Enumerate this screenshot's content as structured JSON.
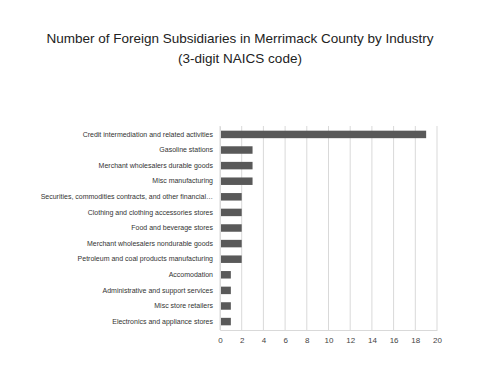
{
  "chart_data": {
    "type": "bar",
    "orientation": "horizontal",
    "title": "Number of Foreign Subsidiaries in Merrimack County by Industry",
    "subtitle": "(3-digit NAICS code)",
    "categories": [
      "Credit intermediation and related activities",
      "Gasoline stations",
      "Merchant wholesalers durable goods",
      "Misc manufacturing",
      "Securities, commodities contracts, and other financial…",
      "Clothing and clothing accessories stores",
      "Food and beverage stores",
      "Merchant wholesalers nondurable goods",
      "Petroleum and coal products manufacturing",
      "Accomodation",
      "Administrative and support services",
      "Misc store retailers",
      "Electronics and appliance stores"
    ],
    "values": [
      19,
      3,
      3,
      3,
      2,
      2,
      2,
      2,
      2,
      1,
      1,
      1,
      1
    ],
    "color": "#595959",
    "xlim": [
      0,
      20
    ],
    "xticks": [
      0,
      2,
      4,
      6,
      8,
      10,
      12,
      14,
      16,
      18,
      20
    ],
    "grid": true
  }
}
